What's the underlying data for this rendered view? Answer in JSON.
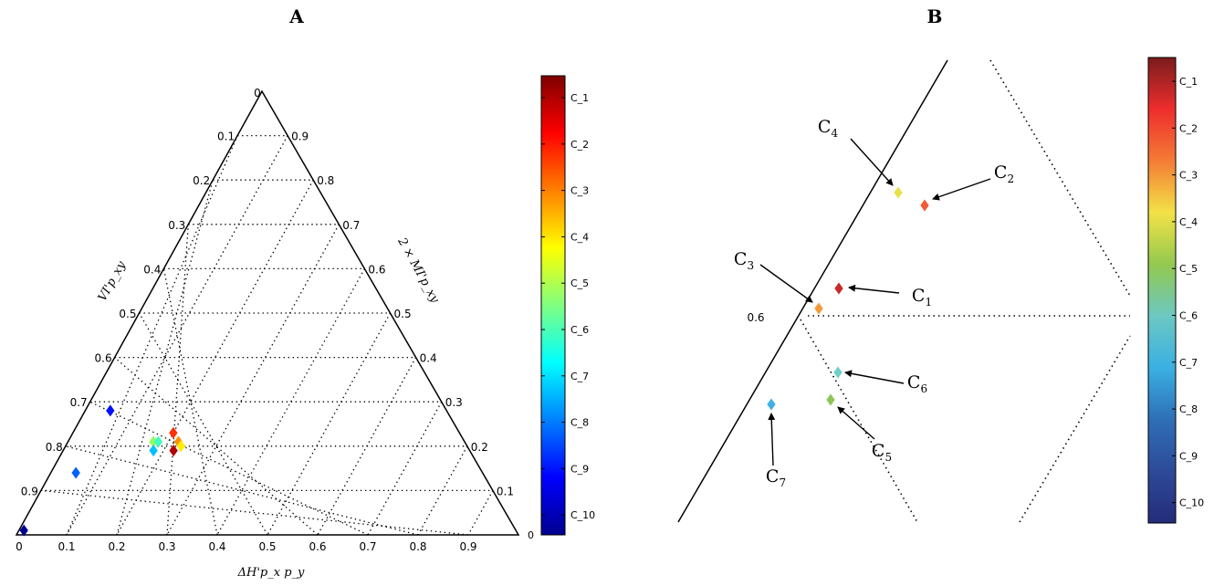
{
  "panel_a": {
    "label": "A",
    "left_axis_label": "VI'p_xy",
    "right_axis_label": "2 × MI'p_xy",
    "bottom_axis_label": "ΔH'p_x p_y",
    "apex_label": "0",
    "left_ticks": [
      "0.1",
      "0.2",
      "0.3",
      "0.4",
      "0.5",
      "0.6",
      "0.7",
      "0.8",
      "0.9"
    ],
    "right_ticks": [
      "0.9",
      "0.8",
      "0.7",
      "0.6",
      "0.5",
      "0.4",
      "0.3",
      "0.2",
      "0.1"
    ],
    "bottom_ticks": [
      "0",
      "0.1",
      "0.2",
      "0.3",
      "0.4",
      "0.5",
      "0.6",
      "0.7",
      "0.8",
      "0.9"
    ]
  },
  "panel_a_colorbar": {
    "bottom_label": "0",
    "labels": [
      "C_1",
      "C_2",
      "C_3",
      "C_4",
      "C_5",
      "C_6",
      "C_7",
      "C_8",
      "C_9",
      "C_10"
    ],
    "colors": [
      "#7f0000",
      "#ff0000",
      "#ff8000",
      "#ffff00",
      "#80ff80",
      "#00ffff",
      "#0080ff",
      "#0000ff",
      "#00008f"
    ]
  },
  "panel_b": {
    "label": "B",
    "tick_label": "0.6",
    "points": [
      {
        "label": "C",
        "sub": "1",
        "color": "#c72a2a"
      },
      {
        "label": "C",
        "sub": "2",
        "color": "#f05a35"
      },
      {
        "label": "C",
        "sub": "3",
        "color": "#f59a3b"
      },
      {
        "label": "C",
        "sub": "4",
        "color": "#e8e04b"
      },
      {
        "label": "C",
        "sub": "5",
        "color": "#8cc65a"
      },
      {
        "label": "C",
        "sub": "6",
        "color": "#72cfc4"
      },
      {
        "label": "C",
        "sub": "7",
        "color": "#3fb0e3"
      }
    ]
  },
  "panel_b_colorbar": {
    "labels": [
      "C_1",
      "C_2",
      "C_3",
      "C_4",
      "C_5",
      "C_6",
      "C_7",
      "C_8",
      "C_9",
      "C_10"
    ],
    "colors": [
      "#7a1c1c",
      "#ee2d2d",
      "#f47c35",
      "#f3e247",
      "#93c94f",
      "#6cc8c2",
      "#3ab0e2",
      "#2e6fb6",
      "#2d4a98",
      "#242c7a"
    ]
  },
  "chart_data": [
    {
      "type": "scatter",
      "panel": "A",
      "coordinates": "ternary",
      "axes": [
        "ΔH'p_x p_y",
        "2 × MI'p_xy",
        "VI'p_xy"
      ],
      "points": [
        {
          "class": "C_1",
          "dH": 0.19,
          "MI": 0.22,
          "VI": 0.59,
          "color": "#b00000"
        },
        {
          "class": "C_2",
          "dH": 0.23,
          "MI": 0.2,
          "VI": 0.57,
          "color": "#ff3000"
        },
        {
          "class": "C_3",
          "dH": 0.21,
          "MI": 0.22,
          "VI": 0.57,
          "color": "#ff9000"
        },
        {
          "class": "C_4",
          "dH": 0.2,
          "MI": 0.23,
          "VI": 0.57,
          "color": "#ffee00"
        },
        {
          "class": "C_5",
          "dH": 0.21,
          "MI": 0.17,
          "VI": 0.62,
          "color": "#90ff60"
        },
        {
          "class": "C_6",
          "dH": 0.21,
          "MI": 0.18,
          "VI": 0.61,
          "color": "#40ffc0"
        },
        {
          "class": "C_7",
          "dH": 0.19,
          "MI": 0.18,
          "VI": 0.63,
          "color": "#00c0ff"
        },
        {
          "class": "C_8",
          "dH": 0.14,
          "MI": 0.05,
          "VI": 0.81,
          "color": "#0060ff"
        },
        {
          "class": "C_9",
          "dH": 0.28,
          "MI": 0.05,
          "VI": 0.67,
          "color": "#0010ff"
        },
        {
          "class": "C_10",
          "dH": 0.01,
          "MI": 0.01,
          "VI": 0.98,
          "color": "#000090"
        }
      ]
    },
    {
      "type": "scatter",
      "panel": "B",
      "coordinates": "ternary (zoomed)",
      "points": [
        {
          "class": "C_1",
          "dH": 0.25,
          "MI": 0.2,
          "VI": 0.55
        },
        {
          "class": "C_2",
          "dH": 0.33,
          "MI": 0.27,
          "VI": 0.4
        },
        {
          "class": "C_3",
          "dH": 0.2,
          "MI": 0.2,
          "VI": 0.6
        },
        {
          "class": "C_4",
          "dH": 0.3,
          "MI": 0.3,
          "VI": 0.4
        },
        {
          "class": "C_5",
          "dH": 0.3,
          "MI": 0.05,
          "VI": 0.65
        },
        {
          "class": "C_6",
          "dH": 0.3,
          "MI": 0.08,
          "VI": 0.62
        },
        {
          "class": "C_7",
          "dH": 0.2,
          "MI": 0.12,
          "VI": 0.68
        }
      ]
    }
  ]
}
